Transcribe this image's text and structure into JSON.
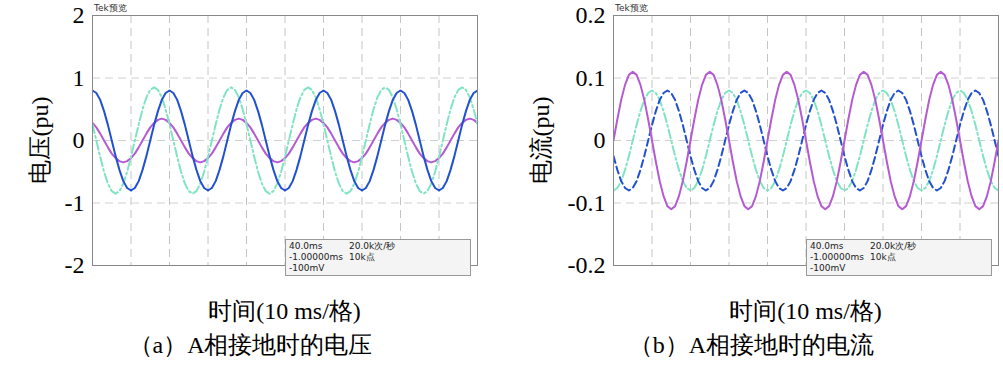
{
  "chart_data": [
    {
      "type": "line",
      "title": "（a）A相接地时的电压",
      "x_label": "时间(10 ms/格)",
      "y_label": "电压(pu)",
      "annotations": [
        "Tek预览",
        "40.0ms",
        "20.0k次/秒",
        "-1.00000ms",
        "10k点",
        "-100mV"
      ],
      "xlim": [
        0,
        100
      ],
      "xticks": [
        0,
        10,
        20,
        30,
        40,
        50,
        60,
        70,
        80,
        90,
        100
      ],
      "ylim": [
        -2,
        2
      ],
      "yticks": [
        -2,
        -1,
        0,
        1,
        2
      ],
      "grid": true,
      "tick_labels": "y",
      "x": [
        0,
        1,
        2,
        3,
        4,
        5,
        6,
        7,
        8,
        9,
        10,
        11,
        12,
        13,
        14,
        15,
        16,
        17,
        18,
        19,
        20,
        21,
        22,
        23,
        24,
        25,
        26,
        27,
        28,
        29,
        30,
        31,
        32,
        33,
        34,
        35,
        36,
        37,
        38,
        39,
        40,
        41,
        42,
        43,
        44,
        45,
        46,
        47,
        48,
        49,
        50,
        51,
        52,
        53,
        54,
        55,
        56,
        57,
        58,
        59,
        60,
        61,
        62,
        63,
        64,
        65,
        66,
        67,
        68,
        69,
        70,
        71,
        72,
        73,
        74,
        75,
        76,
        77,
        78,
        79,
        80,
        81,
        82,
        83,
        84,
        85,
        86,
        87,
        88,
        89,
        90,
        91,
        92,
        93,
        94,
        95,
        96,
        97,
        98,
        99,
        100
      ],
      "series": [
        {
          "color": "#b45ad2",
          "line_style": "solid",
          "values": [
            0.28,
            0.21,
            0.11,
            0,
            -0.11,
            -0.21,
            -0.28,
            -0.33,
            -0.35,
            -0.33,
            -0.28,
            -0.21,
            -0.11,
            0,
            0.11,
            0.21,
            0.28,
            0.33,
            0.35,
            0.33,
            0.28,
            0.21,
            0.11,
            0,
            -0.11,
            -0.21,
            -0.28,
            -0.33,
            -0.35,
            -0.33,
            -0.28,
            -0.21,
            -0.11,
            0,
            0.11,
            0.21,
            0.28,
            0.33,
            0.35,
            0.33,
            0.28,
            0.21,
            0.11,
            0,
            -0.11,
            -0.21,
            -0.28,
            -0.33,
            -0.35,
            -0.33,
            -0.28,
            -0.21,
            -0.11,
            0,
            0.11,
            0.21,
            0.28,
            0.33,
            0.35,
            0.33,
            0.28,
            0.21,
            0.11,
            0,
            -0.11,
            -0.21,
            -0.28,
            -0.33,
            -0.35,
            -0.33,
            -0.28,
            -0.21,
            -0.11,
            0,
            0.11,
            0.21,
            0.28,
            0.33,
            0.35,
            0.33,
            0.28,
            0.21,
            0.11,
            0,
            -0.11,
            -0.21,
            -0.28,
            -0.33,
            -0.35,
            -0.33,
            -0.28,
            -0.21,
            -0.11,
            0,
            0.11,
            0.21,
            0.28,
            0.33,
            0.35,
            0.33,
            0.28
          ]
        },
        {
          "color": "#7fe3c4",
          "line_style": "dashdot",
          "values": [
            0.26,
            0,
            -0.26,
            -0.5,
            -0.69,
            -0.81,
            -0.85,
            -0.81,
            -0.69,
            -0.5,
            -0.26,
            0,
            0.26,
            0.5,
            0.69,
            0.81,
            0.85,
            0.81,
            0.69,
            0.5,
            0.26,
            0,
            -0.26,
            -0.5,
            -0.69,
            -0.81,
            -0.85,
            -0.81,
            -0.69,
            -0.5,
            -0.26,
            0,
            0.26,
            0.5,
            0.69,
            0.81,
            0.85,
            0.81,
            0.69,
            0.5,
            0.26,
            0,
            -0.26,
            -0.5,
            -0.69,
            -0.81,
            -0.85,
            -0.81,
            -0.69,
            -0.5,
            -0.26,
            0,
            0.26,
            0.5,
            0.69,
            0.81,
            0.85,
            0.81,
            0.69,
            0.5,
            0.26,
            0,
            -0.26,
            -0.5,
            -0.69,
            -0.81,
            -0.85,
            -0.81,
            -0.69,
            -0.5,
            -0.26,
            0,
            0.26,
            0.5,
            0.69,
            0.81,
            0.85,
            0.81,
            0.69,
            0.5,
            0.26,
            0,
            -0.26,
            -0.5,
            -0.69,
            -0.81,
            -0.85,
            -0.81,
            -0.69,
            -0.5,
            -0.26,
            0,
            0.26,
            0.5,
            0.69,
            0.81,
            0.85,
            0.81,
            0.69,
            0.5,
            0.26
          ]
        },
        {
          "color": "#2150d0",
          "line_style": "solid",
          "values": [
            0.8,
            0.76,
            0.65,
            0.47,
            0.25,
            0,
            -0.25,
            -0.47,
            -0.65,
            -0.76,
            -0.8,
            -0.76,
            -0.65,
            -0.47,
            -0.25,
            0,
            0.25,
            0.47,
            0.65,
            0.76,
            0.8,
            0.76,
            0.65,
            0.47,
            0.25,
            0,
            -0.25,
            -0.47,
            -0.65,
            -0.76,
            -0.8,
            -0.76,
            -0.65,
            -0.47,
            -0.25,
            0,
            0.25,
            0.47,
            0.65,
            0.76,
            0.8,
            0.76,
            0.65,
            0.47,
            0.25,
            0,
            -0.25,
            -0.47,
            -0.65,
            -0.76,
            -0.8,
            -0.76,
            -0.65,
            -0.47,
            -0.25,
            0,
            0.25,
            0.47,
            0.65,
            0.76,
            0.8,
            0.76,
            0.65,
            0.47,
            0.25,
            0,
            -0.25,
            -0.47,
            -0.65,
            -0.76,
            -0.8,
            -0.76,
            -0.65,
            -0.47,
            -0.25,
            0,
            0.25,
            0.47,
            0.65,
            0.76,
            0.8,
            0.76,
            0.65,
            0.47,
            0.25,
            0,
            -0.25,
            -0.47,
            -0.65,
            -0.76,
            -0.8,
            -0.76,
            -0.65,
            -0.47,
            -0.25,
            0,
            0.25,
            0.47,
            0.65,
            0.76,
            0.8
          ]
        }
      ]
    },
    {
      "type": "line",
      "title": "（b）A相接地时的电流",
      "x_label": "时间(10 ms/格)",
      "y_label": "电流(pu)",
      "annotations": [
        "Tek预览",
        "40.0ms",
        "20.0k次/秒",
        "-1.00000ms",
        "10k点",
        "-100mV"
      ],
      "xlim": [
        0,
        100
      ],
      "xticks": [
        0,
        10,
        20,
        30,
        40,
        50,
        60,
        70,
        80,
        90,
        100
      ],
      "ylim": [
        -0.2,
        0.2
      ],
      "yticks": [
        -0.2,
        -0.1,
        0,
        0.1,
        0.2
      ],
      "grid": true,
      "tick_labels": "y",
      "x": [
        0,
        1,
        2,
        3,
        4,
        5,
        6,
        7,
        8,
        9,
        10,
        11,
        12,
        13,
        14,
        15,
        16,
        17,
        18,
        19,
        20,
        21,
        22,
        23,
        24,
        25,
        26,
        27,
        28,
        29,
        30,
        31,
        32,
        33,
        34,
        35,
        36,
        37,
        38,
        39,
        40,
        41,
        42,
        43,
        44,
        45,
        46,
        47,
        48,
        49,
        50,
        51,
        52,
        53,
        54,
        55,
        56,
        57,
        58,
        59,
        60,
        61,
        62,
        63,
        64,
        65,
        66,
        67,
        68,
        69,
        70,
        71,
        72,
        73,
        74,
        75,
        76,
        77,
        78,
        79,
        80,
        81,
        82,
        83,
        84,
        85,
        86,
        87,
        88,
        89,
        90,
        91,
        92,
        93,
        94,
        95,
        96,
        97,
        98,
        99,
        100
      ],
      "series": [
        {
          "color": "#7fe3c4",
          "line_style": "dashdot",
          "values": [
            -0.08,
            -0.076,
            -0.065,
            -0.047,
            -0.025,
            0,
            0.025,
            0.047,
            0.065,
            0.076,
            0.08,
            0.076,
            0.065,
            0.047,
            0.025,
            0,
            -0.025,
            -0.047,
            -0.065,
            -0.076,
            -0.08,
            -0.076,
            -0.065,
            -0.047,
            -0.025,
            0,
            0.025,
            0.047,
            0.065,
            0.076,
            0.08,
            0.076,
            0.065,
            0.047,
            0.025,
            0,
            -0.025,
            -0.047,
            -0.065,
            -0.076,
            -0.08,
            -0.076,
            -0.065,
            -0.047,
            -0.025,
            0,
            0.025,
            0.047,
            0.065,
            0.076,
            0.08,
            0.076,
            0.065,
            0.047,
            0.025,
            0,
            -0.025,
            -0.047,
            -0.065,
            -0.076,
            -0.08,
            -0.076,
            -0.065,
            -0.047,
            -0.025,
            0,
            0.025,
            0.047,
            0.065,
            0.076,
            0.08,
            0.076,
            0.065,
            0.047,
            0.025,
            0,
            -0.025,
            -0.047,
            -0.065,
            -0.076,
            -0.08,
            -0.076,
            -0.065,
            -0.047,
            -0.025,
            0,
            0.025,
            0.047,
            0.065,
            0.076,
            0.08,
            0.076,
            0.065,
            0.047,
            0.025,
            0,
            -0.025,
            -0.047,
            -0.065,
            -0.076,
            -0.08
          ]
        },
        {
          "color": "#2150d0",
          "line_style": "dashed",
          "values": [
            -0.025,
            -0.047,
            -0.065,
            -0.076,
            -0.08,
            -0.076,
            -0.065,
            -0.047,
            -0.025,
            0,
            0.025,
            0.047,
            0.065,
            0.076,
            0.08,
            0.076,
            0.065,
            0.047,
            0.025,
            0,
            -0.025,
            -0.047,
            -0.065,
            -0.076,
            -0.08,
            -0.076,
            -0.065,
            -0.047,
            -0.025,
            0,
            0.025,
            0.047,
            0.065,
            0.076,
            0.08,
            0.076,
            0.065,
            0.047,
            0.025,
            0,
            -0.025,
            -0.047,
            -0.065,
            -0.076,
            -0.08,
            -0.076,
            -0.065,
            -0.047,
            -0.025,
            0,
            0.025,
            0.047,
            0.065,
            0.076,
            0.08,
            0.076,
            0.065,
            0.047,
            0.025,
            0,
            -0.025,
            -0.047,
            -0.065,
            -0.076,
            -0.08,
            -0.076,
            -0.065,
            -0.047,
            -0.025,
            0,
            0.025,
            0.047,
            0.065,
            0.076,
            0.08,
            0.076,
            0.065,
            0.047,
            0.025,
            0,
            -0.025,
            -0.047,
            -0.065,
            -0.076,
            -0.08,
            -0.076,
            -0.065,
            -0.047,
            -0.025,
            0,
            0.025,
            0.047,
            0.065,
            0.076,
            0.08,
            0.076,
            0.065,
            0.047,
            0.025,
            0,
            -0.025
          ]
        },
        {
          "color": "#b45ad2",
          "line_style": "solid",
          "values": [
            0,
            0.034,
            0.065,
            0.089,
            0.105,
            0.11,
            0.105,
            0.089,
            0.065,
            0.034,
            0,
            -0.034,
            -0.065,
            -0.089,
            -0.105,
            -0.11,
            -0.105,
            -0.089,
            -0.065,
            -0.034,
            0,
            0.034,
            0.065,
            0.089,
            0.105,
            0.11,
            0.105,
            0.089,
            0.065,
            0.034,
            0,
            -0.034,
            -0.065,
            -0.089,
            -0.105,
            -0.11,
            -0.105,
            -0.089,
            -0.065,
            -0.034,
            0,
            0.034,
            0.065,
            0.089,
            0.105,
            0.11,
            0.105,
            0.089,
            0.065,
            0.034,
            0,
            -0.034,
            -0.065,
            -0.089,
            -0.105,
            -0.11,
            -0.105,
            -0.089,
            -0.065,
            -0.034,
            0,
            0.034,
            0.065,
            0.089,
            0.105,
            0.11,
            0.105,
            0.089,
            0.065,
            0.034,
            0,
            -0.034,
            -0.065,
            -0.089,
            -0.105,
            -0.11,
            -0.105,
            -0.089,
            -0.065,
            -0.034,
            0,
            0.034,
            0.065,
            0.089,
            0.105,
            0.11,
            0.105,
            0.089,
            0.065,
            0.034,
            0,
            -0.034,
            -0.065,
            -0.089,
            -0.105,
            -0.11,
            -0.105,
            -0.089,
            -0.065,
            -0.034,
            0
          ]
        }
      ]
    }
  ]
}
